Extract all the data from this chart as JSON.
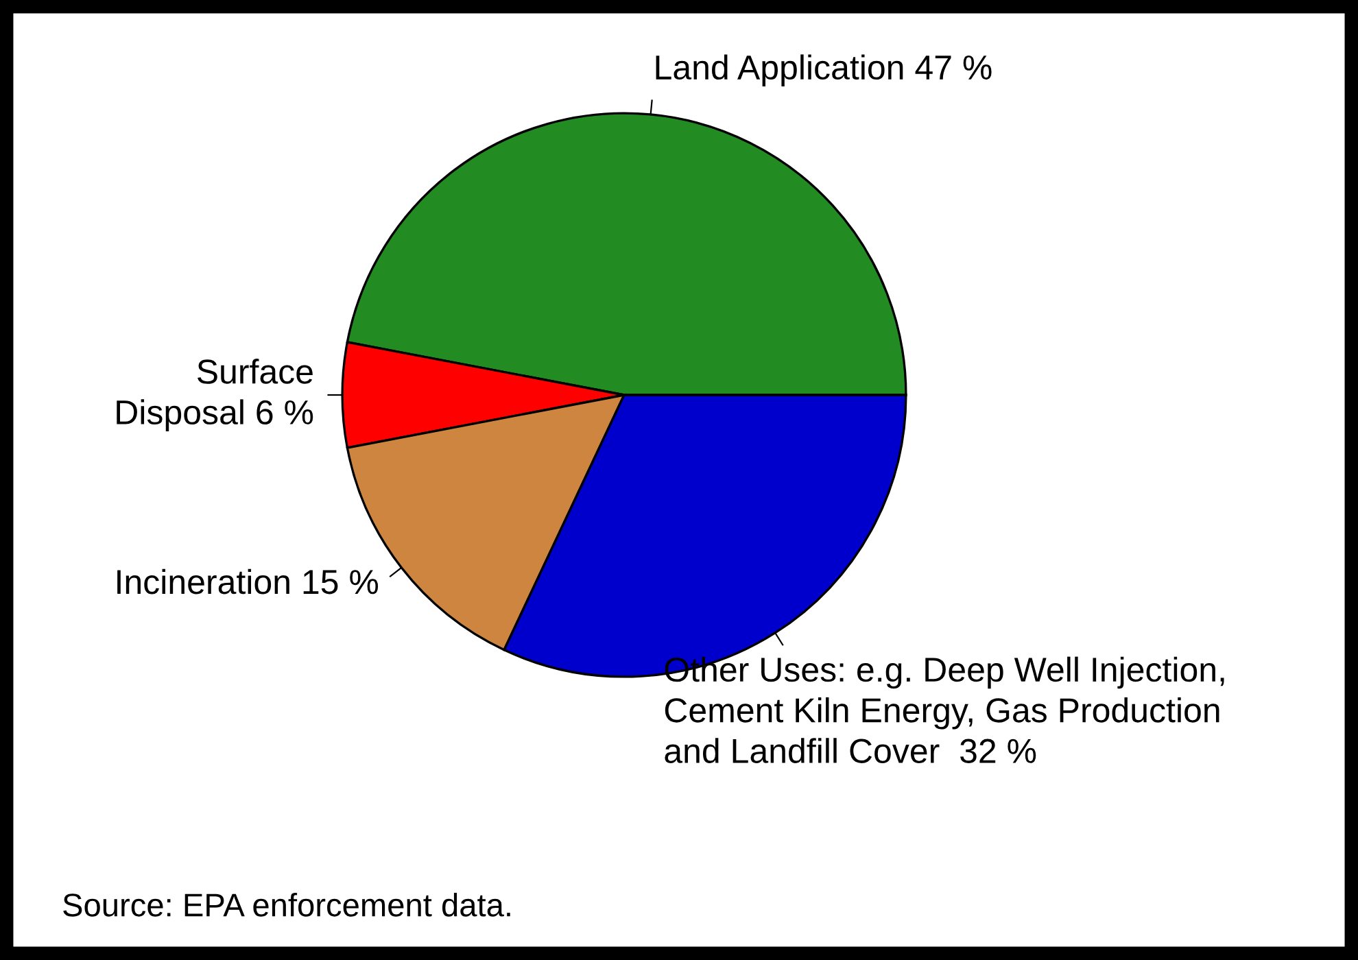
{
  "chart_data": {
    "type": "pie",
    "categories": [
      "Land Application 47 %",
      "Surface\nDisposal 6 %",
      "Incineration 15 %",
      "Other Uses: e.g. Deep Well Injection,\nCement Kiln Energy, Gas Production\nand Landfill Cover  32 %"
    ],
    "values": [
      47,
      6,
      15,
      32
    ],
    "colors": [
      "#228b22",
      "#ff0000",
      "#cd853f",
      "#0000cd"
    ],
    "annotations": [
      "Source: EPA enforcement data."
    ]
  }
}
